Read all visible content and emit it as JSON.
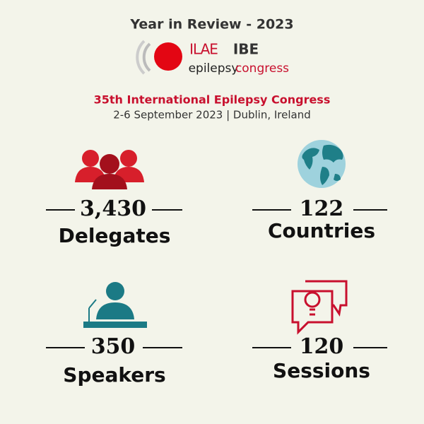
{
  "header": {
    "title": "Year in Review - 2023",
    "logo": {
      "ilae": "ILAE",
      "ibe": "IBE",
      "word1": "epilepsy",
      "word2": "congress"
    }
  },
  "event": {
    "title": "35th International Epilepsy Congress",
    "subtitle": "2-6 September 2023 | Dublin, Ireland"
  },
  "stats": [
    {
      "value": "3,430",
      "label": "Delegates"
    },
    {
      "value": "122",
      "label": "Countries"
    },
    {
      "value": "350",
      "label": "Speakers"
    },
    {
      "value": "120",
      "label": "Sessions"
    }
  ]
}
